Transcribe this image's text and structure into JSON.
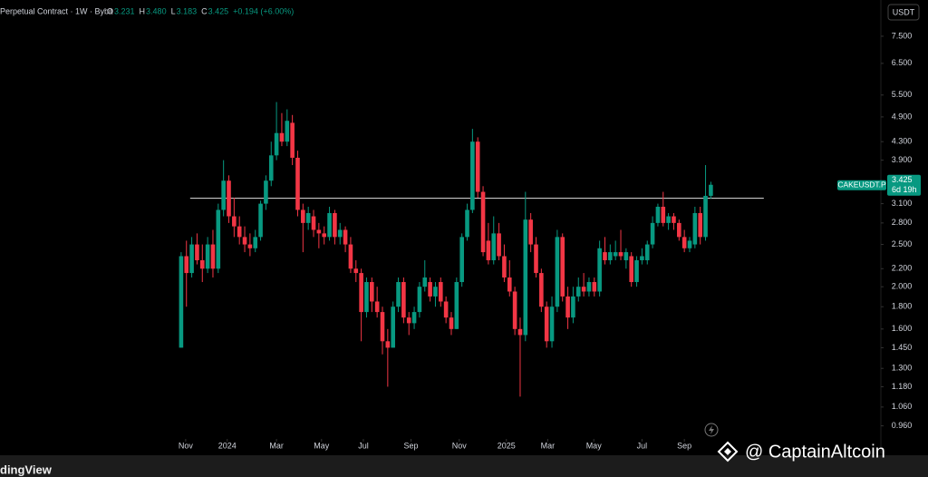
{
  "chart_data": {
    "type": "candlestick",
    "header": {
      "info": "Perpetual Contract · 1W · Bybit",
      "ohlc": [
        {
          "label": "O",
          "value": "3.231"
        },
        {
          "label": "H",
          "value": "3.480"
        },
        {
          "label": "L",
          "value": "3.183"
        },
        {
          "label": "C",
          "value": "3.425"
        }
      ],
      "change": "+0.194 (+6.00%)"
    },
    "currency_button": "USDT",
    "price_tag": {
      "symbol": "CAKEUSDT.P",
      "price": "3.425",
      "countdown": "6d 19h"
    },
    "watermark": "@ CaptainAltcoin",
    "footer_logo": "dingView",
    "up_color": "#089981",
    "down_color": "#f23645",
    "log_scale": true,
    "ylim": [
      0.896,
      9.08
    ],
    "yticks": [
      {
        "value": 7.5,
        "label": "7.500"
      },
      {
        "value": 6.5,
        "label": "6.500"
      },
      {
        "value": 5.5,
        "label": "5.500"
      },
      {
        "value": 4.9,
        "label": "4.900"
      },
      {
        "value": 4.3,
        "label": "4.300"
      },
      {
        "value": 3.9,
        "label": "3.900"
      },
      {
        "value": 3.1,
        "label": "3.100"
      },
      {
        "value": 2.8,
        "label": "2.800"
      },
      {
        "value": 2.5,
        "label": "2.500"
      },
      {
        "value": 2.2,
        "label": "2.200"
      },
      {
        "value": 2.0,
        "label": "2.000"
      },
      {
        "value": 1.8,
        "label": "1.800"
      },
      {
        "value": 1.6,
        "label": "1.600"
      },
      {
        "value": 1.45,
        "label": "1.450"
      },
      {
        "value": 1.3,
        "label": "1.300"
      },
      {
        "value": 1.18,
        "label": "1.180"
      },
      {
        "value": 1.06,
        "label": "1.060"
      },
      {
        "value": 0.96,
        "label": "0.960"
      }
    ],
    "xlim": [
      -34.2,
      132.1
    ],
    "xticks": [
      {
        "value": 0.85,
        "label": "Nov"
      },
      {
        "value": 8.7,
        "label": "2024"
      },
      {
        "value": 18,
        "label": "Mar"
      },
      {
        "value": 26.5,
        "label": "May"
      },
      {
        "value": 34.4,
        "label": "Jul"
      },
      {
        "value": 43.4,
        "label": "Sep"
      },
      {
        "value": 52.5,
        "label": "Nov"
      },
      {
        "value": 61.4,
        "label": "2025"
      },
      {
        "value": 69.2,
        "label": "Mar"
      },
      {
        "value": 77.9,
        "label": "May"
      },
      {
        "value": 87,
        "label": "Jul"
      },
      {
        "value": 95,
        "label": "Sep"
      }
    ],
    "hline": 3.19,
    "open": [
      1.45,
      2.35,
      2.15,
      2.5,
      2.3,
      2.2,
      2.5,
      2.2,
      3.0,
      3.5,
      2.9,
      2.75,
      2.6,
      2.5,
      2.45,
      2.6,
      3.1,
      3.5,
      4.0,
      4.5,
      4.3,
      4.75,
      3.95,
      3.0,
      2.8,
      2.9,
      2.7,
      2.65,
      2.6,
      2.95,
      2.6,
      2.7,
      2.5,
      2.2,
      2.15,
      1.75,
      2.05,
      1.85,
      1.75,
      1.5,
      1.45,
      1.8,
      2.05,
      1.7,
      1.65,
      1.75,
      2.0,
      2.05,
      1.9,
      2.05,
      1.85,
      1.7,
      1.6,
      2.05,
      2.6,
      3.0,
      4.3,
      3.3,
      2.55,
      2.3,
      2.65,
      2.35,
      2.1,
      1.95,
      1.6,
      1.55,
      2.85,
      2.5,
      2.15,
      1.8,
      1.5,
      1.8,
      2.6,
      1.9,
      1.7,
      1.9,
      2.0,
      1.95,
      2.05,
      1.95,
      2.4,
      2.3,
      2.35,
      2.4,
      2.3,
      2.35,
      2.05,
      2.3,
      2.3,
      2.5,
      2.8,
      3.05,
      2.8,
      2.9,
      2.8,
      2.6,
      2.45,
      2.5,
      2.95,
      2.6,
      3.231
    ],
    "high": [
      2.4,
      2.55,
      2.6,
      2.65,
      2.5,
      2.6,
      2.7,
      3.1,
      3.9,
      3.6,
      3.2,
      2.9,
      2.75,
      2.65,
      2.7,
      3.15,
      3.6,
      4.3,
      5.3,
      5.0,
      5.1,
      4.95,
      4.1,
      3.1,
      3.05,
      3.0,
      2.8,
      2.75,
      3.05,
      3.0,
      2.8,
      2.75,
      2.6,
      2.3,
      2.2,
      2.1,
      2.1,
      2.0,
      1.8,
      1.6,
      1.85,
      2.1,
      2.1,
      1.75,
      1.8,
      2.05,
      2.3,
      2.1,
      2.05,
      2.1,
      1.9,
      1.75,
      2.1,
      2.65,
      3.1,
      4.6,
      4.4,
      3.4,
      2.8,
      2.9,
      2.8,
      2.5,
      2.3,
      2.0,
      1.7,
      3.3,
      2.95,
      2.6,
      2.2,
      1.85,
      1.9,
      2.7,
      2.65,
      2.0,
      2.0,
      2.1,
      2.15,
      2.1,
      2.1,
      2.55,
      2.6,
      2.5,
      2.55,
      2.7,
      2.45,
      2.4,
      2.35,
      2.45,
      2.55,
      2.9,
      3.1,
      3.3,
      2.95,
      2.95,
      2.85,
      2.7,
      2.6,
      3.05,
      3.05,
      3.8,
      3.48
    ],
    "low": [
      1.45,
      1.8,
      2.1,
      2.25,
      2.05,
      2.15,
      2.1,
      2.15,
      2.9,
      2.8,
      2.6,
      2.5,
      2.4,
      2.35,
      2.4,
      2.55,
      3.0,
      3.4,
      3.9,
      4.2,
      4.2,
      3.8,
      2.9,
      2.4,
      2.7,
      2.6,
      2.45,
      2.5,
      2.55,
      2.5,
      2.5,
      2.4,
      2.15,
      2.05,
      1.5,
      1.7,
      1.75,
      1.7,
      1.4,
      1.18,
      1.45,
      1.75,
      1.65,
      1.55,
      1.6,
      1.7,
      1.95,
      1.85,
      1.8,
      1.8,
      1.65,
      1.55,
      1.6,
      2.0,
      2.55,
      2.95,
      3.2,
      2.35,
      2.25,
      2.25,
      2.3,
      2.05,
      1.9,
      1.55,
      1.12,
      1.5,
      2.4,
      2.1,
      1.75,
      1.45,
      1.45,
      1.75,
      1.85,
      1.6,
      1.65,
      1.85,
      1.9,
      1.9,
      1.9,
      1.9,
      2.25,
      2.25,
      2.3,
      2.3,
      2.2,
      2.0,
      2.0,
      2.25,
      2.25,
      2.45,
      2.75,
      2.75,
      2.7,
      2.7,
      2.55,
      2.4,
      2.4,
      2.45,
      2.5,
      2.55,
      3.183
    ],
    "close": [
      2.35,
      2.15,
      2.5,
      2.3,
      2.2,
      2.5,
      2.2,
      3.0,
      3.5,
      2.9,
      2.75,
      2.6,
      2.5,
      2.45,
      2.6,
      3.1,
      3.5,
      4.0,
      4.5,
      4.3,
      4.8,
      3.95,
      3.0,
      2.8,
      2.95,
      2.7,
      2.65,
      2.6,
      2.95,
      2.6,
      2.7,
      2.5,
      2.2,
      2.15,
      1.75,
      2.05,
      1.85,
      1.75,
      1.5,
      1.45,
      1.8,
      2.05,
      1.7,
      1.65,
      1.75,
      2.0,
      2.1,
      1.9,
      2.0,
      1.85,
      1.7,
      1.6,
      2.05,
      2.6,
      3.0,
      4.3,
      3.3,
      2.4,
      2.3,
      2.65,
      2.35,
      2.1,
      1.95,
      1.6,
      1.55,
      2.85,
      2.5,
      2.15,
      1.8,
      1.5,
      1.8,
      2.6,
      1.9,
      1.7,
      1.9,
      2.0,
      1.95,
      2.05,
      1.95,
      2.45,
      2.3,
      2.4,
      2.4,
      2.35,
      2.4,
      2.05,
      2.3,
      2.35,
      2.5,
      2.8,
      3.05,
      2.8,
      2.9,
      2.8,
      2.6,
      2.45,
      2.55,
      2.95,
      2.6,
      3.231,
      3.425
    ]
  }
}
